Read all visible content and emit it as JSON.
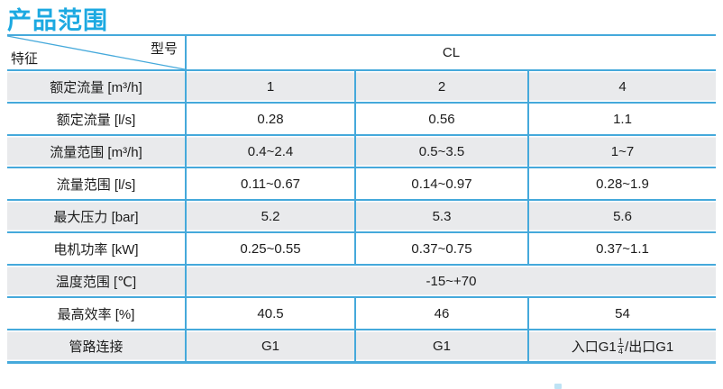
{
  "title": "产品范围",
  "colors": {
    "accent_blue": "#45a9db",
    "title_blue": "#1ca9e1",
    "row_gray": "#e9eaec"
  },
  "table": {
    "corner_top_label": "型号",
    "corner_bottom_label": "特征",
    "model_header": "CL",
    "rows": [
      {
        "label": "额定流量 [m³/h]",
        "shaded": true,
        "values": [
          "1",
          "2",
          "4"
        ]
      },
      {
        "label": "额定流量 [l/s]",
        "shaded": false,
        "values": [
          "0.28",
          "0.56",
          "1.1"
        ]
      },
      {
        "label": "流量范围 [m³/h]",
        "shaded": true,
        "values": [
          "0.4~2.4",
          "0.5~3.5",
          "1~7"
        ]
      },
      {
        "label": "流量范围 [l/s]",
        "shaded": false,
        "values": [
          "0.11~0.67",
          "0.14~0.97",
          "0.28~1.9"
        ]
      },
      {
        "label": "最大压力 [bar]",
        "shaded": true,
        "values": [
          "5.2",
          "5.3",
          "5.6"
        ]
      },
      {
        "label": "电机功率 [kW]",
        "shaded": false,
        "values": [
          "0.25~0.55",
          "0.37~0.75",
          "0.37~1.1"
        ]
      },
      {
        "label": "温度范围 [℃]",
        "shaded": true,
        "span_value": "-15~+70"
      },
      {
        "label": "最高效率 [%]",
        "shaded": false,
        "values": [
          "40.5",
          "46",
          "54"
        ]
      },
      {
        "label": "管路连接",
        "shaded": true,
        "values": [
          "G1",
          "G1",
          {
            "pre": "入口G1",
            "frac_num": "1",
            "frac_den": "4",
            "post": "/出口G1"
          }
        ]
      }
    ]
  }
}
